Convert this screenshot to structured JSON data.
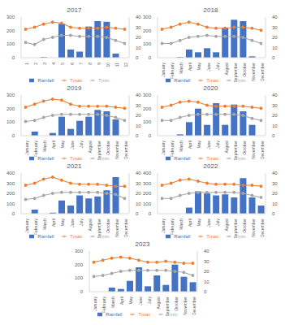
{
  "chart_data": [
    {
      "type": "bar",
      "title": "2017",
      "categories": [
        "1",
        "2",
        "3",
        "4",
        "5",
        "6",
        "7",
        "8",
        "9",
        "10",
        "11",
        "12"
      ],
      "ylim": [
        0,
        300
      ],
      "yticks": [
        0,
        100,
        200,
        300
      ],
      "y2lim": [
        0,
        40
      ],
      "y2ticks": [
        0,
        10,
        20,
        30,
        40
      ],
      "legend": "bottom",
      "series": [
        {
          "name": "Rainfall",
          "type": "bar",
          "color": "#4472c4",
          "values": [
            0,
            0,
            5,
            0,
            250,
            60,
            45,
            230,
            270,
            265,
            30,
            0
          ]
        },
        {
          "name": "Tmax",
          "type": "line",
          "axis": "y2",
          "marker": "circle",
          "color": "#ed7d31",
          "values": [
            28,
            30,
            33,
            35,
            34,
            30,
            29,
            29,
            29,
            30,
            29,
            28
          ]
        },
        {
          "name": "Tmin",
          "type": "line",
          "axis": "y2",
          "marker": "circle",
          "color": "#a5a5a5",
          "values": [
            15,
            13,
            18,
            20,
            22,
            22,
            21,
            21,
            21,
            20,
            17,
            14
          ]
        }
      ]
    },
    {
      "type": "bar",
      "title": "2018",
      "categories": [
        "January",
        "February",
        "March",
        "April",
        "May",
        "June",
        "July",
        "August",
        "September",
        "October",
        "November",
        "December"
      ],
      "ylim": [
        0,
        300
      ],
      "yticks": [
        0,
        100,
        200,
        300
      ],
      "y2lim": [
        0,
        40
      ],
      "y2ticks": [
        0,
        10,
        20,
        30,
        40
      ],
      "legend": "bottom",
      "series": [
        {
          "name": "Rainfall",
          "type": "bar",
          "color": "#4472c4",
          "values": [
            0,
            0,
            5,
            60,
            40,
            70,
            40,
            220,
            280,
            270,
            10,
            0
          ]
        },
        {
          "name": "Tmax",
          "type": "line",
          "axis": "y2",
          "marker": "circle",
          "color": "#ed7d31",
          "values": [
            28,
            30,
            33,
            35,
            33,
            30,
            29,
            29,
            30,
            30,
            29,
            27
          ]
        },
        {
          "name": "Tmin",
          "type": "line",
          "axis": "y2",
          "marker": "circle",
          "color": "#a5a5a5",
          "values": [
            14,
            14,
            17,
            20,
            21,
            22,
            21,
            21,
            21,
            20,
            17,
            14
          ]
        }
      ]
    },
    {
      "type": "bar",
      "title": "2019",
      "categories": [
        "January",
        "February",
        "March",
        "April",
        "May",
        "June",
        "July",
        "August",
        "September",
        "October",
        "November",
        "December"
      ],
      "ylim": [
        0,
        300
      ],
      "yticks": [
        0,
        100,
        200,
        300
      ],
      "y2lim": [
        0,
        40
      ],
      "y2ticks": [
        0,
        10,
        20,
        30,
        40
      ],
      "legend": "bottom",
      "series": [
        {
          "name": "Rainfall",
          "type": "bar",
          "color": "#4472c4",
          "values": [
            0,
            30,
            0,
            20,
            140,
            50,
            110,
            140,
            190,
            180,
            120,
            0
          ]
        },
        {
          "name": "Tmax",
          "type": "line",
          "axis": "y2",
          "marker": "circle",
          "color": "#ed7d31",
          "values": [
            28,
            31,
            34,
            36,
            35,
            31,
            29,
            29,
            29,
            29,
            28,
            27
          ]
        },
        {
          "name": "Tmin",
          "type": "line",
          "axis": "y2",
          "marker": "circle",
          "color": "#a5a5a5",
          "values": [
            14,
            15,
            18,
            20,
            21,
            21,
            21,
            21,
            21,
            20,
            18,
            15
          ]
        }
      ]
    },
    {
      "type": "bar",
      "title": "2020",
      "categories": [
        "January",
        "February",
        "March",
        "April",
        "May",
        "June",
        "July",
        "August",
        "September",
        "October",
        "November",
        "December"
      ],
      "ylim": [
        0,
        300
      ],
      "yticks": [
        0,
        100,
        200,
        300
      ],
      "y2lim": [
        0,
        40
      ],
      "y2ticks": [
        0,
        10,
        20,
        30,
        40
      ],
      "legend": "bottom",
      "series": [
        {
          "name": "Rainfall",
          "type": "bar",
          "color": "#4472c4",
          "values": [
            0,
            0,
            10,
            100,
            200,
            80,
            240,
            80,
            230,
            180,
            80,
            0
          ]
        },
        {
          "name": "Tmax",
          "type": "line",
          "axis": "y2",
          "marker": "circle",
          "color": "#ed7d31",
          "values": [
            28,
            30,
            33,
            34,
            33,
            30,
            29,
            29,
            29,
            29,
            28,
            27
          ]
        },
        {
          "name": "Tmin",
          "type": "line",
          "axis": "y2",
          "marker": "circle",
          "color": "#a5a5a5",
          "values": [
            15,
            15,
            18,
            20,
            21,
            21,
            21,
            21,
            21,
            20,
            17,
            15
          ]
        }
      ]
    },
    {
      "type": "bar",
      "title": "2021",
      "categories": [
        "January",
        "February",
        "March",
        "April",
        "May",
        "June",
        "July",
        "August",
        "September",
        "October",
        "November",
        "December"
      ],
      "ylim": [
        0,
        400
      ],
      "yticks": [
        0,
        100,
        200,
        300,
        400
      ],
      "y2lim": [
        0,
        40
      ],
      "y2ticks": [
        0,
        10,
        20,
        30,
        40
      ],
      "legend": "bottom",
      "series": [
        {
          "name": "Rainfall",
          "type": "bar",
          "color": "#4472c4",
          "values": [
            0,
            40,
            0,
            10,
            130,
            80,
            180,
            150,
            170,
            230,
            360,
            0
          ]
        },
        {
          "name": "Tmax",
          "type": "line",
          "axis": "y2",
          "marker": "circle",
          "color": "#ed7d31",
          "values": [
            28,
            30,
            34,
            36,
            33,
            30,
            29,
            29,
            29,
            28,
            27,
            27
          ]
        },
        {
          "name": "Tmin",
          "type": "line",
          "axis": "y2",
          "marker": "circle",
          "color": "#a5a5a5",
          "values": [
            14,
            15,
            18,
            20,
            21,
            21,
            21,
            21,
            21,
            20,
            19,
            15
          ]
        }
      ]
    },
    {
      "type": "bar",
      "title": "2022",
      "categories": [
        "January",
        "February",
        "March",
        "April",
        "May",
        "June",
        "July",
        "August",
        "September",
        "October",
        "November",
        "December"
      ],
      "ylim": [
        0,
        400
      ],
      "yticks": [
        0,
        100,
        200,
        300,
        400
      ],
      "y2lim": [
        0,
        40
      ],
      "y2ticks": [
        0,
        10,
        20,
        30,
        40
      ],
      "legend": "bottom",
      "series": [
        {
          "name": "Rainfall",
          "type": "bar",
          "color": "#4472c4",
          "values": [
            0,
            0,
            0,
            60,
            220,
            200,
            180,
            190,
            160,
            350,
            160,
            80
          ]
        },
        {
          "name": "Tmax",
          "type": "line",
          "axis": "y2",
          "marker": "circle",
          "color": "#ed7d31",
          "values": [
            28,
            30,
            33,
            34,
            32,
            30,
            29,
            29,
            29,
            28,
            28,
            27
          ]
        },
        {
          "name": "Tmin",
          "type": "line",
          "axis": "y2",
          "marker": "circle",
          "color": "#a5a5a5",
          "values": [
            15,
            15,
            18,
            20,
            21,
            21,
            21,
            21,
            21,
            20,
            18,
            16
          ]
        }
      ]
    },
    {
      "type": "bar",
      "title": "2023",
      "categories": [
        "January",
        "February",
        "March",
        "April",
        "May",
        "June",
        "July",
        "August",
        "September",
        "October",
        "November",
        "December"
      ],
      "ylim": [
        0,
        300
      ],
      "yticks": [
        0,
        100,
        200,
        300
      ],
      "y2lim": [
        0,
        40
      ],
      "y2ticks": [
        0,
        10,
        20,
        30,
        40
      ],
      "legend": "bottom",
      "series": [
        {
          "name": "Rainfall",
          "type": "bar",
          "color": "#4472c4",
          "values": [
            0,
            0,
            30,
            20,
            80,
            180,
            40,
            120,
            50,
            200,
            110,
            70
          ]
        },
        {
          "name": "Tmax",
          "type": "line",
          "axis": "y2",
          "marker": "circle",
          "color": "#ed7d31",
          "values": [
            29,
            31,
            33,
            34,
            33,
            31,
            29,
            29,
            30,
            29,
            28,
            28
          ]
        },
        {
          "name": "Tmin",
          "type": "line",
          "axis": "y2",
          "marker": "circle",
          "color": "#a5a5a5",
          "values": [
            15,
            16,
            18,
            20,
            21,
            21,
            21,
            21,
            21,
            20,
            19,
            16
          ]
        }
      ]
    }
  ]
}
